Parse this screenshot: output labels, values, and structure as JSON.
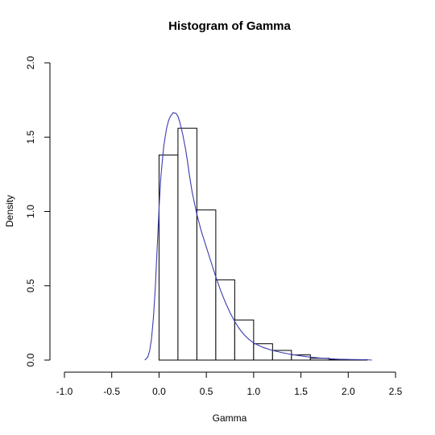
{
  "chart_data": {
    "type": "histogram",
    "title": "Histogram of Gamma",
    "xlabel": "Gamma",
    "ylabel": "Density",
    "xlim": [
      -1.0,
      2.5
    ],
    "ylim": [
      0,
      2.0
    ],
    "x_ticks": [
      -1.0,
      -0.5,
      0.0,
      0.5,
      1.0,
      1.5,
      2.0,
      2.5
    ],
    "x_tick_labels": [
      "-1.0",
      "-0.5",
      "0.0",
      "0.5",
      "1.0",
      "1.5",
      "2.0",
      "2.5"
    ],
    "y_ticks": [
      0.0,
      0.5,
      1.0,
      1.5,
      2.0
    ],
    "y_tick_labels": [
      "0.0",
      "0.5",
      "1.0",
      "1.5",
      "2.0"
    ],
    "bins": [
      {
        "start": 0.0,
        "end": 0.2,
        "density": 1.38
      },
      {
        "start": 0.2,
        "end": 0.4,
        "density": 1.56
      },
      {
        "start": 0.4,
        "end": 0.6,
        "density": 1.01
      },
      {
        "start": 0.6,
        "end": 0.8,
        "density": 0.54
      },
      {
        "start": 0.8,
        "end": 1.0,
        "density": 0.27
      },
      {
        "start": 1.0,
        "end": 1.2,
        "density": 0.11
      },
      {
        "start": 1.2,
        "end": 1.4,
        "density": 0.065
      },
      {
        "start": 1.4,
        "end": 1.6,
        "density": 0.035
      },
      {
        "start": 1.6,
        "end": 1.8,
        "density": 0.012
      },
      {
        "start": 1.8,
        "end": 2.0,
        "density": 0.004
      },
      {
        "start": 2.0,
        "end": 2.2,
        "density": 0.003
      }
    ],
    "density_curve": {
      "color": "#3b3bb0",
      "x": [
        -0.15,
        -0.12,
        -0.1,
        -0.08,
        -0.06,
        -0.04,
        -0.02,
        0.0,
        0.02,
        0.05,
        0.08,
        0.1,
        0.12,
        0.15,
        0.18,
        0.2,
        0.22,
        0.25,
        0.28,
        0.3,
        0.32,
        0.35,
        0.38,
        0.4,
        0.45,
        0.5,
        0.55,
        0.6,
        0.65,
        0.7,
        0.75,
        0.8,
        0.85,
        0.9,
        0.95,
        1.0,
        1.1,
        1.2,
        1.3,
        1.4,
        1.5,
        1.6,
        1.7,
        1.8,
        1.9,
        2.0,
        2.1,
        2.2,
        2.25
      ],
      "y": [
        0.0,
        0.02,
        0.06,
        0.14,
        0.28,
        0.48,
        0.75,
        1.02,
        1.24,
        1.44,
        1.56,
        1.61,
        1.64,
        1.665,
        1.66,
        1.64,
        1.6,
        1.52,
        1.42,
        1.34,
        1.25,
        1.13,
        1.04,
        0.98,
        0.86,
        0.76,
        0.66,
        0.56,
        0.47,
        0.39,
        0.32,
        0.26,
        0.21,
        0.17,
        0.14,
        0.115,
        0.085,
        0.065,
        0.05,
        0.038,
        0.028,
        0.02,
        0.014,
        0.009,
        0.006,
        0.004,
        0.003,
        0.002,
        0.0
      ]
    }
  }
}
